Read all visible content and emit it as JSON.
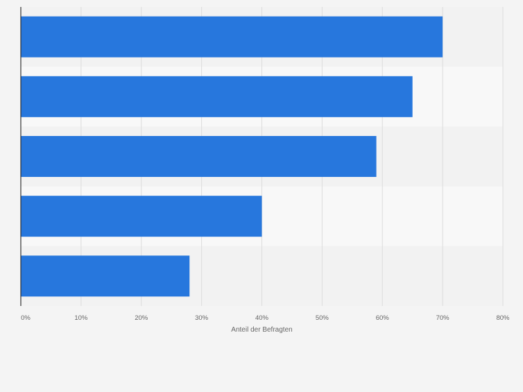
{
  "chart_data": {
    "type": "bar",
    "orientation": "horizontal",
    "categories": [
      "",
      "",
      "",
      "",
      ""
    ],
    "values": [
      70,
      65,
      59,
      40,
      28
    ],
    "xlabel": "Anteil der Befragten",
    "ylabel": "",
    "xlim": [
      0,
      80
    ],
    "ticks": [
      0,
      10,
      20,
      30,
      40,
      50,
      60,
      70,
      80
    ],
    "tick_labels": [
      "0%",
      "10%",
      "20%",
      "30%",
      "40%",
      "50%",
      "60%",
      "70%",
      "80%"
    ],
    "value_unit": "%",
    "grid": true,
    "legend": "none",
    "colors": {
      "bar": "#2777dd",
      "band_dark": "#f2f2f2",
      "band_light": "#f8f8f8",
      "background": "#f4f4f4",
      "grid": "#dcdcdc",
      "axis": "#333333",
      "tick_text": "#666666"
    }
  }
}
